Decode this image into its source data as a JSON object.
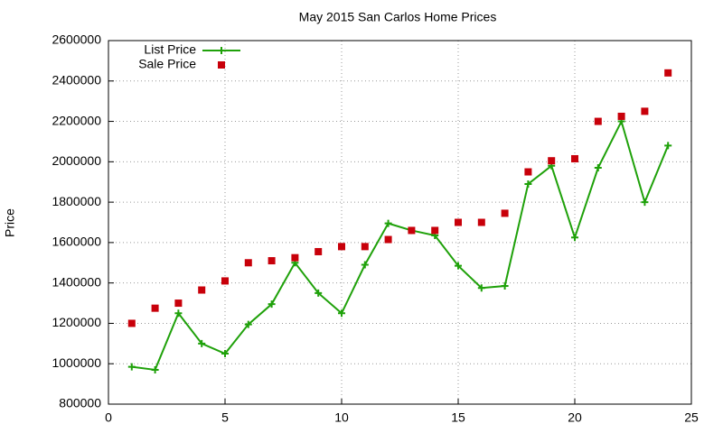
{
  "chart_data": {
    "type": "line",
    "title": "May 2015 San Carlos Home Prices",
    "y_label": "Price",
    "x": [
      1,
      2,
      3,
      4,
      5,
      6,
      7,
      8,
      9,
      10,
      11,
      12,
      13,
      14,
      15,
      16,
      17,
      18,
      19,
      20,
      21,
      22,
      23,
      24
    ],
    "series": [
      {
        "name": "List Price",
        "color": "#1fa10a",
        "style": "line-points",
        "values": [
          985000,
          970000,
          1250000,
          1100000,
          1050000,
          1195000,
          1295000,
          1500000,
          1350000,
          1250000,
          1490000,
          1695000,
          1660000,
          1635000,
          1485000,
          1375000,
          1385000,
          1890000,
          1980000,
          1625000,
          1970000,
          2200000,
          1800000,
          2080000
        ]
      },
      {
        "name": "Sale Price",
        "color": "#c8000a",
        "style": "points",
        "values": [
          1200000,
          1275000,
          1300000,
          1365000,
          1410000,
          1500000,
          1510000,
          1525000,
          1555000,
          1580000,
          1580000,
          1615000,
          1660000,
          1660000,
          1700000,
          1700000,
          1745000,
          1950000,
          2005000,
          2015000,
          2200000,
          2225000,
          2250000,
          2440000
        ]
      }
    ],
    "xlim": [
      0,
      25
    ],
    "xticks": [
      0,
      5,
      10,
      15,
      20,
      25
    ],
    "ylim": [
      800000,
      2600000
    ],
    "yticks": [
      800000,
      1000000,
      1200000,
      1400000,
      1600000,
      1800000,
      2000000,
      2200000,
      2400000,
      2600000
    ],
    "grid": true,
    "legend": "top-left"
  }
}
